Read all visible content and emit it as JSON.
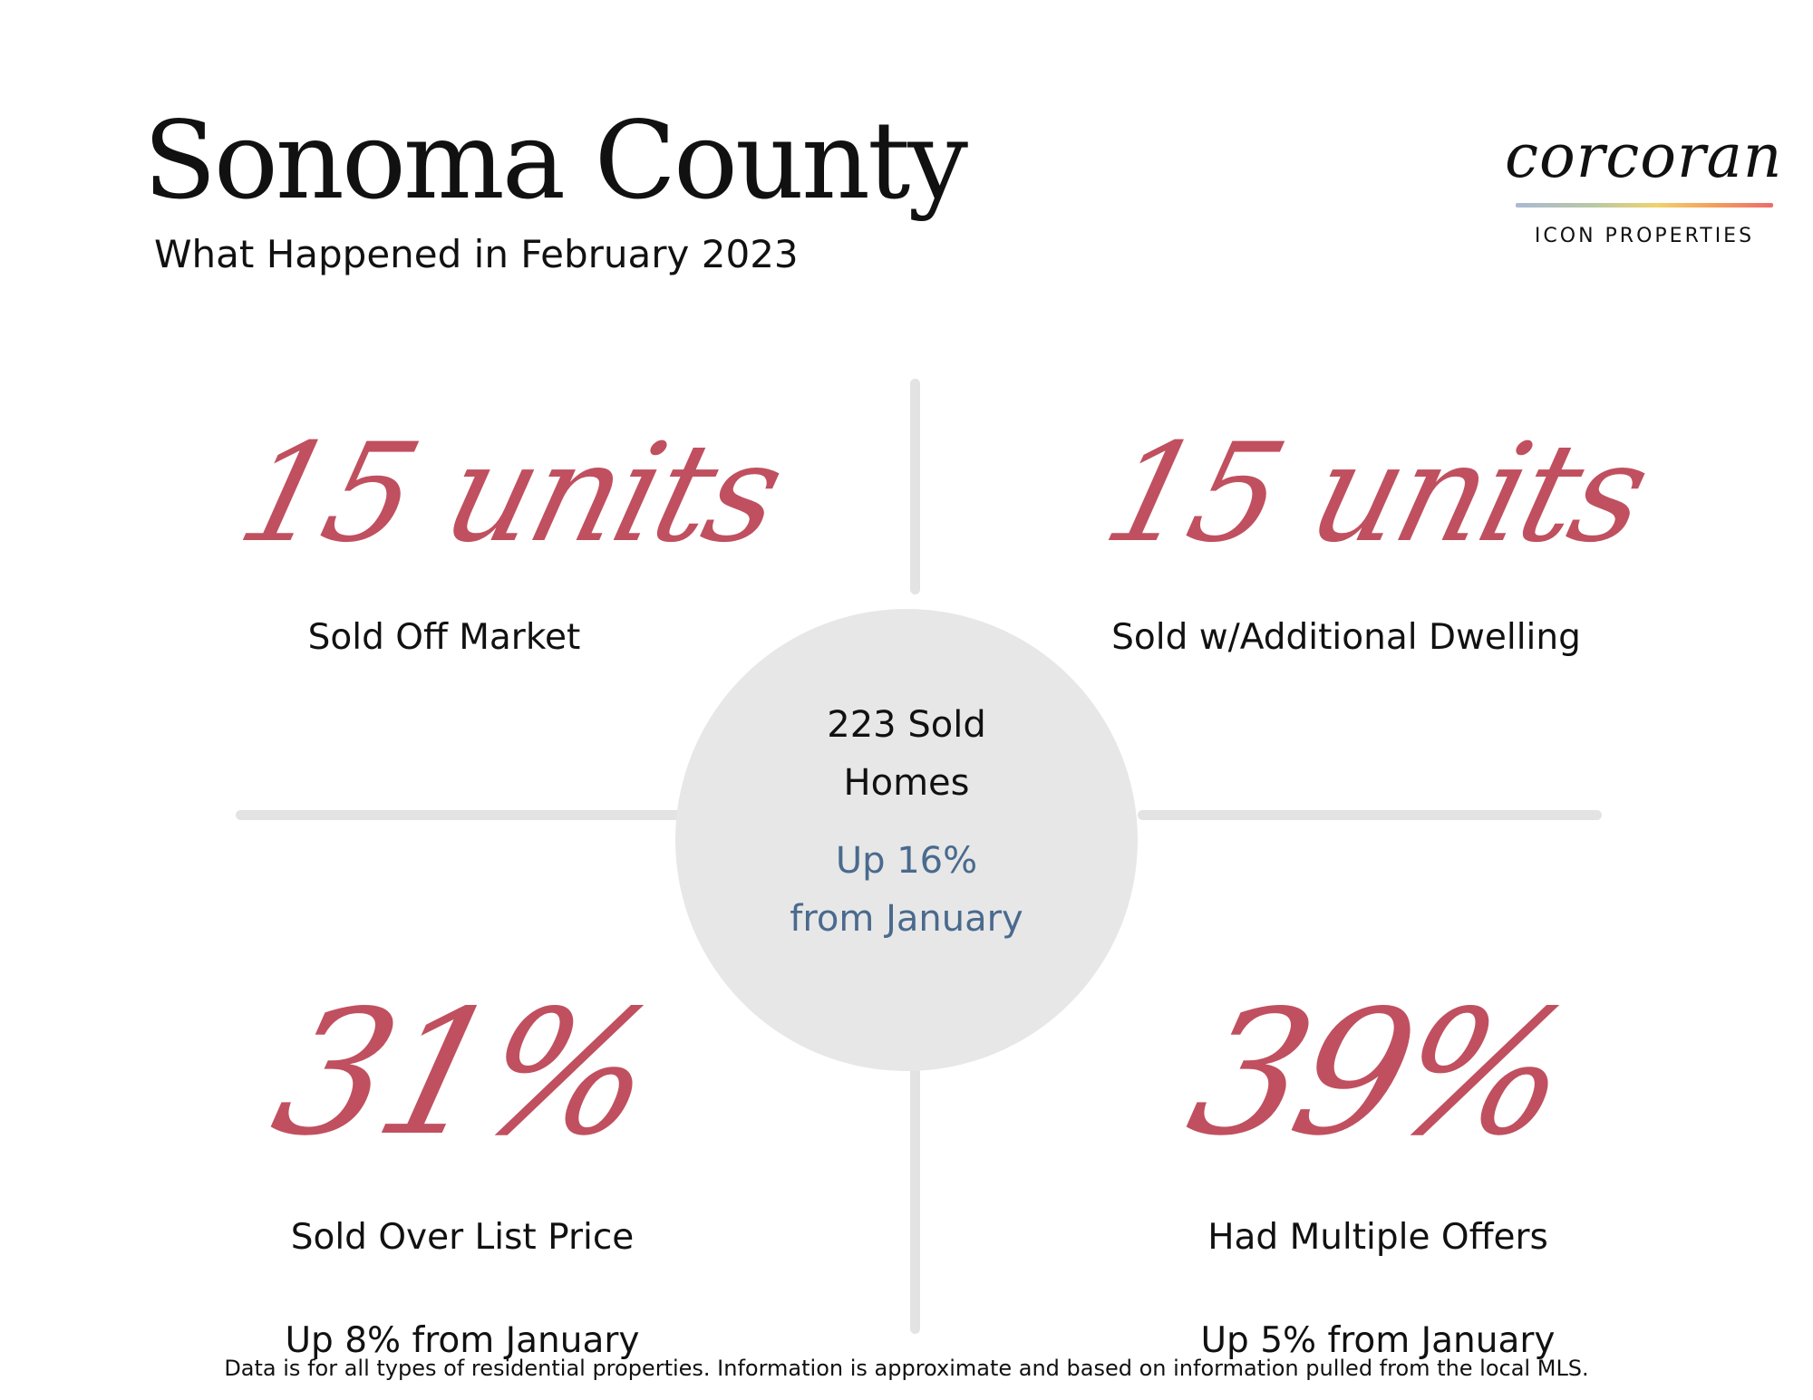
{
  "header": {
    "title": "Sonoma County",
    "subtitle": "What Happened in February 2023"
  },
  "logo": {
    "wordmark": "corcoran",
    "tagline": "ICON PROPERTIES",
    "gradient_colors": [
      "#a9b9d3",
      "#b8c9a6",
      "#f1d26a",
      "#f4a35c",
      "#ee6b6b"
    ]
  },
  "center": {
    "line1": "223 Sold",
    "line2": "Homes",
    "change_line1": "Up 16%",
    "change_line2": "from January"
  },
  "stats": {
    "top_left": {
      "value": "15 units",
      "label": "Sold Off Market"
    },
    "top_right": {
      "value": "15 units",
      "label": "Sold w/Additional Dwelling"
    },
    "bottom_left": {
      "value": "31%",
      "label": "Sold Over List Price",
      "change": "Up 8% from January"
    },
    "bottom_right": {
      "value": "39%",
      "label": "Had Multiple Offers",
      "change": "Up 5% from January"
    }
  },
  "footnote": "Data is for all types of residential properties. Information is approximate and based on information pulled from the local MLS.",
  "colors": {
    "accent": "#c0505f",
    "change_text": "#4a6a8e",
    "circle": "#e7e7e7",
    "divider": "#e3e3e3"
  }
}
